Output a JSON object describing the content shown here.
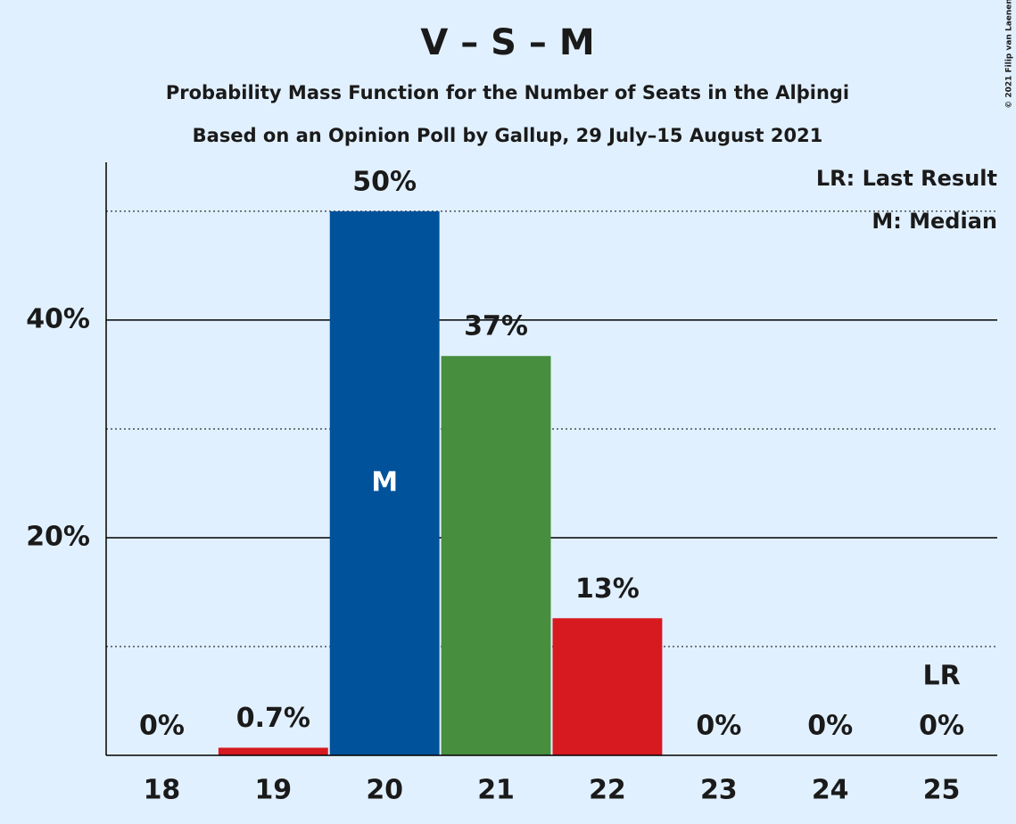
{
  "chart_data": {
    "type": "bar",
    "title": "V – S – M",
    "subtitle": "Probability Mass Function for the Number of Seats in the Alþingi",
    "subtitle2": "Based on an Opinion Poll by Gallup, 29 July–15 August 2021",
    "copyright": "© 2021 Filip van Laenen",
    "categories": [
      "18",
      "19",
      "20",
      "21",
      "22",
      "23",
      "24",
      "25"
    ],
    "values": [
      0,
      0.7,
      50,
      36.7,
      12.6,
      0,
      0,
      0
    ],
    "value_labels": [
      "0%",
      "0.7%",
      "50%",
      "37%",
      "13%",
      "0%",
      "0%",
      "0%"
    ],
    "colors": [
      "#d71920",
      "#d71920",
      "#00529b",
      "#478e3f",
      "#d71920",
      "#d71920",
      "#d71920",
      "#d71920"
    ],
    "ylim": [
      0,
      54.5
    ],
    "yticks": [
      {
        "value": 20,
        "label": "20%"
      },
      {
        "value": 40,
        "label": "40%"
      }
    ],
    "minor_yticks": [
      10,
      30,
      50
    ],
    "grid": true,
    "median": {
      "label": "M",
      "category": "20"
    },
    "last_result": {
      "label": "LR",
      "category": "25"
    },
    "legend": [
      "LR: Last Result",
      "M: Median"
    ],
    "legend_position": "upper right"
  }
}
